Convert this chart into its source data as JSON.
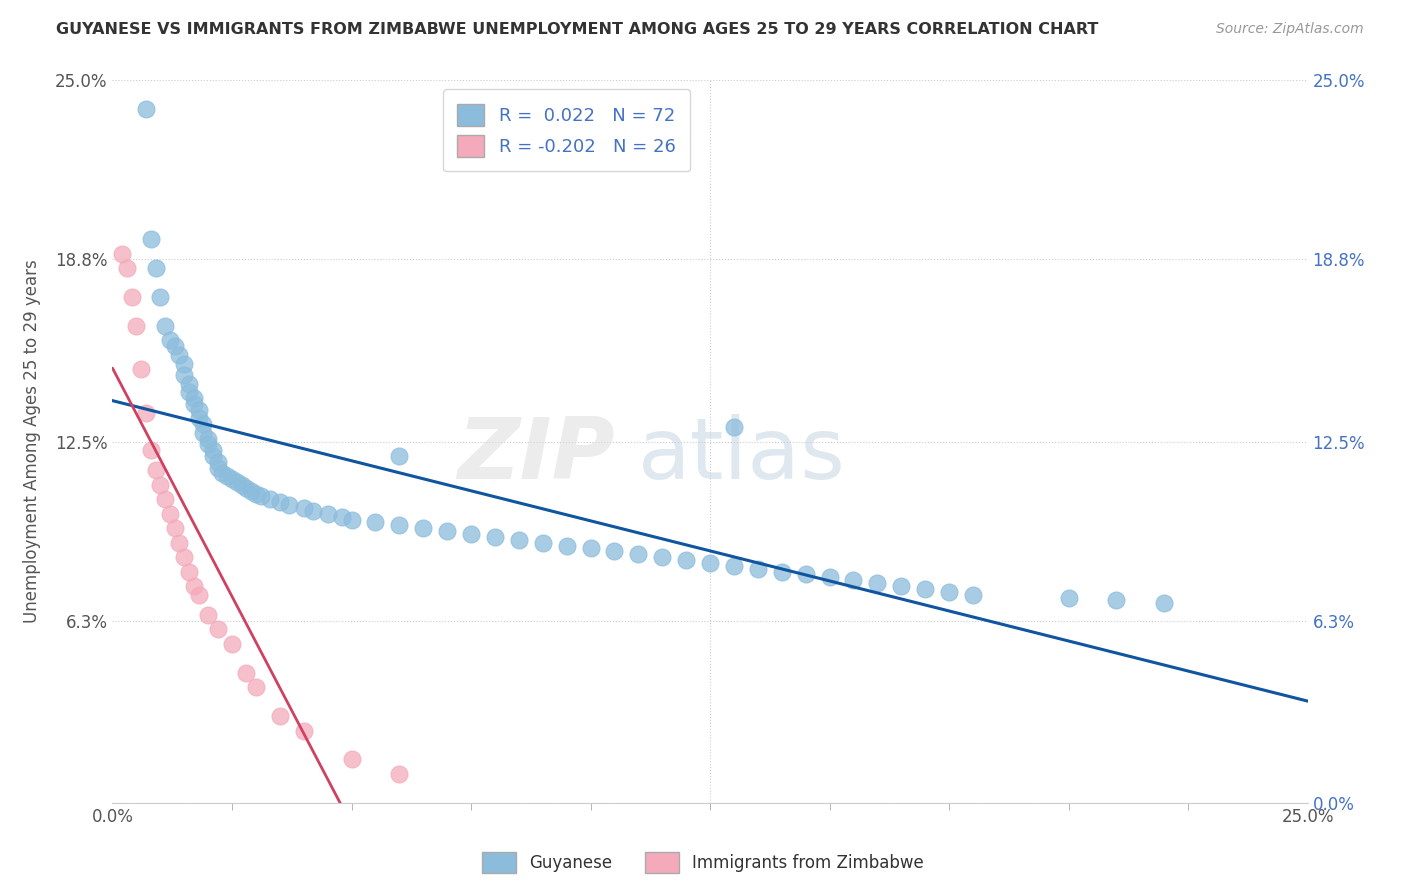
{
  "title": "GUYANESE VS IMMIGRANTS FROM ZIMBABWE UNEMPLOYMENT AMONG AGES 25 TO 29 YEARS CORRELATION CHART",
  "source": "Source: ZipAtlas.com",
  "ylabel": "Unemployment Among Ages 25 to 29 years",
  "xmin": 0.0,
  "xmax": 0.25,
  "ymin": 0.0,
  "ymax": 0.25,
  "yticks": [
    0.0,
    0.063,
    0.125,
    0.188,
    0.25
  ],
  "ytick_labels_left": [
    "",
    "6.3%",
    "12.5%",
    "18.8%",
    "25.0%"
  ],
  "ytick_labels_right": [
    "0.0%",
    "6.3%",
    "12.5%",
    "18.8%",
    "25.0%"
  ],
  "xtick_left_label": "0.0%",
  "xtick_right_label": "25.0%",
  "blue_color": "#8BBCDC",
  "pink_color": "#F4AABB",
  "blue_line_color": "#1055A0",
  "pink_line_color": "#D04060",
  "pink_line_dash": "#E8B0C0",
  "r_blue": "0.022",
  "n_blue": 72,
  "r_pink": "-0.202",
  "n_pink": 26,
  "watermark_zip": "ZIP",
  "watermark_atlas": "atlas",
  "legend_label_blue": "Guyanese",
  "legend_label_pink": "Immigrants from Zimbabwe",
  "blue_scatter_x": [
    0.007,
    0.008,
    0.009,
    0.01,
    0.011,
    0.012,
    0.013,
    0.014,
    0.015,
    0.015,
    0.016,
    0.016,
    0.017,
    0.017,
    0.018,
    0.018,
    0.019,
    0.019,
    0.02,
    0.02,
    0.021,
    0.021,
    0.022,
    0.022,
    0.023,
    0.024,
    0.025,
    0.026,
    0.027,
    0.028,
    0.029,
    0.03,
    0.031,
    0.033,
    0.035,
    0.037,
    0.04,
    0.042,
    0.045,
    0.048,
    0.05,
    0.055,
    0.06,
    0.065,
    0.07,
    0.075,
    0.08,
    0.085,
    0.09,
    0.095,
    0.1,
    0.105,
    0.11,
    0.115,
    0.12,
    0.125,
    0.13,
    0.135,
    0.14,
    0.145,
    0.15,
    0.155,
    0.16,
    0.165,
    0.17,
    0.175,
    0.18,
    0.2,
    0.21,
    0.22,
    0.06,
    0.13
  ],
  "blue_scatter_y": [
    0.24,
    0.195,
    0.185,
    0.175,
    0.165,
    0.16,
    0.158,
    0.155,
    0.152,
    0.148,
    0.145,
    0.142,
    0.14,
    0.138,
    0.136,
    0.133,
    0.131,
    0.128,
    0.126,
    0.124,
    0.122,
    0.12,
    0.118,
    0.116,
    0.114,
    0.113,
    0.112,
    0.111,
    0.11,
    0.109,
    0.108,
    0.107,
    0.106,
    0.105,
    0.104,
    0.103,
    0.102,
    0.101,
    0.1,
    0.099,
    0.098,
    0.097,
    0.096,
    0.095,
    0.094,
    0.093,
    0.092,
    0.091,
    0.09,
    0.089,
    0.088,
    0.087,
    0.086,
    0.085,
    0.084,
    0.083,
    0.082,
    0.081,
    0.08,
    0.079,
    0.078,
    0.077,
    0.076,
    0.075,
    0.074,
    0.073,
    0.072,
    0.071,
    0.07,
    0.069,
    0.12,
    0.13
  ],
  "pink_scatter_x": [
    0.002,
    0.003,
    0.004,
    0.005,
    0.006,
    0.007,
    0.008,
    0.009,
    0.01,
    0.011,
    0.012,
    0.013,
    0.014,
    0.015,
    0.016,
    0.017,
    0.018,
    0.02,
    0.022,
    0.025,
    0.028,
    0.03,
    0.035,
    0.04,
    0.05,
    0.06
  ],
  "pink_scatter_y": [
    0.19,
    0.185,
    0.175,
    0.165,
    0.15,
    0.135,
    0.122,
    0.115,
    0.11,
    0.105,
    0.1,
    0.095,
    0.09,
    0.085,
    0.08,
    0.075,
    0.072,
    0.065,
    0.06,
    0.055,
    0.045,
    0.04,
    0.03,
    0.025,
    0.015,
    0.01
  ]
}
